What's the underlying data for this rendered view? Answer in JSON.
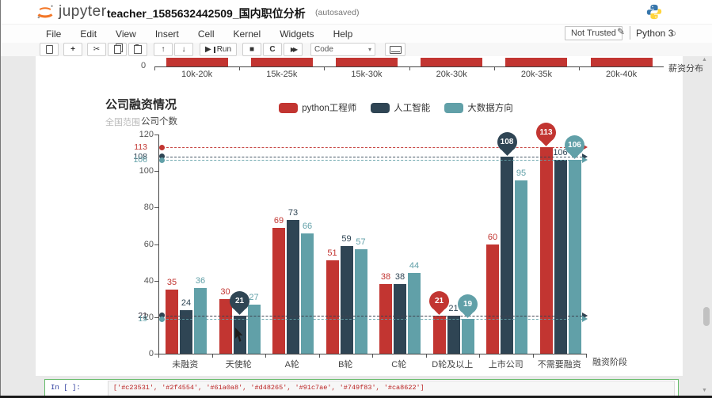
{
  "header": {
    "app_name": "jupyter",
    "notebook_title": "teacher_1585632442509_国内职位分析",
    "autosave_status": "(autosaved)"
  },
  "menubar": {
    "items": [
      "File",
      "Edit",
      "View",
      "Insert",
      "Cell",
      "Kernel",
      "Widgets",
      "Help"
    ],
    "trust_status": "Not Trusted",
    "kernel_name": "Python 3",
    "kernel_idle_icon": "circle-icon",
    "edit_icon": "pencil-icon"
  },
  "toolbar": {
    "run_label": "Run",
    "cell_type_selected": "Code",
    "icons": [
      "save-icon",
      "add-cell-icon",
      "cut-icon",
      "copy-icon",
      "paste-icon",
      "move-up-icon",
      "move-down-icon",
      "run-icon",
      "stop-icon",
      "restart-icon",
      "fast-forward-icon",
      "keyboard-icon"
    ]
  },
  "chart_data": [
    {
      "type": "bar",
      "note": "partially visible bottom of previous chart output",
      "categories": [
        "10k-20k",
        "15k-25k",
        "15k-30k",
        "20k-30k",
        "20k-35k",
        "20k-40k"
      ],
      "xlabel": "薪资分布",
      "visible_ytick": "0",
      "bar_color": "#c23531"
    },
    {
      "type": "bar",
      "title": "公司融资情况",
      "subtitle": "全国范围",
      "ylabel": "公司个数",
      "xlabel": "融资阶段",
      "ylim": [
        0,
        120
      ],
      "yticks": [
        0,
        20,
        40,
        60,
        80,
        100,
        120
      ],
      "grid": false,
      "legend_position": "top-center",
      "categories": [
        "未融资",
        "天使轮",
        "A轮",
        "B轮",
        "C轮",
        "D轮及以上",
        "上市公司",
        "不需要融资"
      ],
      "series": [
        {
          "name": "python工程师",
          "color": "#c23531",
          "values": [
            35,
            30,
            69,
            51,
            38,
            21,
            60,
            113
          ],
          "max": 113,
          "min": 21
        },
        {
          "name": "人工智能",
          "color": "#2f4554",
          "values": [
            24,
            21,
            73,
            59,
            38,
            21,
            108,
            106
          ],
          "max": 108,
          "min": 21
        },
        {
          "name": "大数据方向",
          "color": "#61a0a8",
          "values": [
            36,
            27,
            66,
            57,
            44,
            19,
            95,
            106
          ],
          "max": 106,
          "min": 19
        }
      ],
      "markpoints": [
        {
          "series": 0,
          "group": 7,
          "value": 113,
          "kind": "max"
        },
        {
          "series": 0,
          "group": 5,
          "value": 21,
          "kind": "min"
        },
        {
          "series": 1,
          "group": 6,
          "value": 108,
          "kind": "max"
        },
        {
          "series": 1,
          "group": 1,
          "value": 21,
          "kind": "min"
        },
        {
          "series": 2,
          "group": 7,
          "value": 106,
          "kind": "max"
        },
        {
          "series": 2,
          "group": 5,
          "value": 19,
          "kind": "min"
        }
      ]
    }
  ],
  "code_cell": {
    "prompt": "In [ ]:",
    "code": "['#c23531', '#2f4554', '#61a0a8', '#d48265', '#91c7ae', '#749f83', '#ca8622']"
  },
  "colors": {
    "series_red": "#c23531",
    "series_dark": "#2f4554",
    "series_teal": "#61a0a8",
    "trusted_border": "#c3c3c3",
    "cell_edit_border": "#66bb6a"
  }
}
